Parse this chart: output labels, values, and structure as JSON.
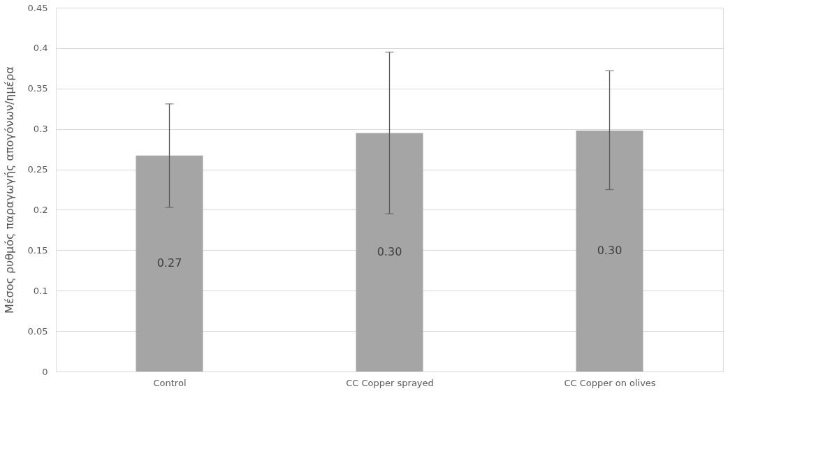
{
  "chart_data": {
    "type": "bar",
    "ylabel": "Μέσος ρυθμός παραγωγής απογόνων/ημέρα",
    "categories": [
      "Control",
      "CC Copper sprayed",
      "CC Copper on olives"
    ],
    "values": [
      0.267,
      0.295,
      0.298
    ],
    "color": "#a5a5a5",
    "errors": [
      [
        0.203,
        0.331
      ],
      [
        0.195,
        0.395
      ],
      [
        0.225,
        0.372
      ]
    ],
    "value_labels": [
      "0.27",
      "0.30",
      "0.30"
    ],
    "ylim": [
      0,
      0.45
    ],
    "yticks": [
      {
        "value": 0,
        "label": "0"
      },
      0.05,
      {
        "value": 0.1,
        "label": "0.1"
      },
      0.15,
      {
        "value": 0.2,
        "label": "0.2"
      },
      0.25,
      {
        "value": 0.3,
        "label": "0.3"
      },
      0.35,
      {
        "value": 0.4,
        "label": "0.4"
      },
      0.45
    ],
    "grid": "y"
  }
}
